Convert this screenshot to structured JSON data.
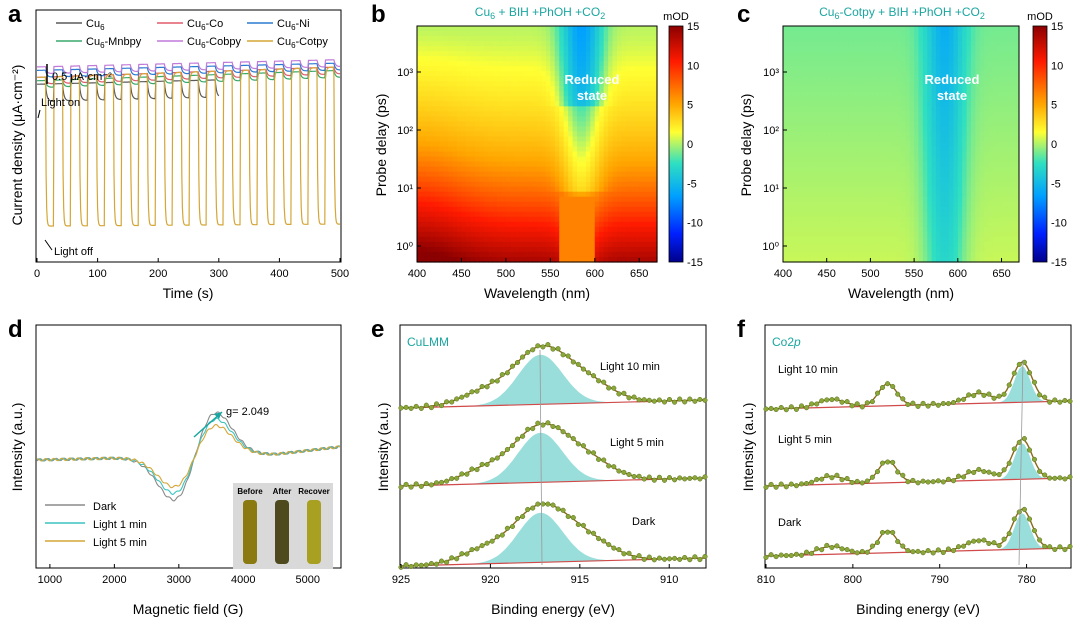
{
  "panel_labels": [
    "a",
    "b",
    "c",
    "d",
    "e",
    "f"
  ],
  "chart_data": [
    {
      "id": "a",
      "type": "line",
      "xlabel": "Time (s)",
      "ylabel": "Current density (μA·cm⁻²)",
      "xlim": [
        0,
        500
      ],
      "xticks": [
        0,
        100,
        200,
        300,
        400,
        500
      ],
      "scale_bar": "0.5 μA·cm⁻²",
      "annotations": [
        "Light on",
        "Light off"
      ],
      "series": [
        {
          "name": "Cu6",
          "color": "#5a5a5a",
          "t_end": 300,
          "on_level": 2.25,
          "off_level": 2.0
        },
        {
          "name": "Cu6-Co",
          "color": "#e05a6a",
          "t_end": 500,
          "on_level": 2.35,
          "off_level": 2.25
        },
        {
          "name": "Cu6-Ni",
          "color": "#2a7bd0",
          "t_end": 500,
          "on_level": 2.45,
          "off_level": 2.35
        },
        {
          "name": "Cu6-Mnbpy",
          "color": "#3aa86a",
          "t_end": 500,
          "on_level": 2.3,
          "off_level": 2.2
        },
        {
          "name": "Cu6-Cobpy",
          "color": "#c07ad8",
          "t_end": 500,
          "on_level": 2.5,
          "off_level": 2.4
        },
        {
          "name": "Cu6-Cotpy",
          "color": "#d4a637",
          "t_end": 500,
          "on_level": 2.35,
          "off_level": 0.2
        }
      ],
      "cycle_period_s": 28
    },
    {
      "id": "b",
      "type": "heatmap",
      "title": "Cu6 + BIH +PhOH +CO2",
      "xlabel": "Wavelength (nm)",
      "ylabel": "Probe delay (ps)",
      "xlim": [
        400,
        670
      ],
      "xticks": [
        400,
        450,
        500,
        550,
        600,
        650
      ],
      "y_log": true,
      "yticks": [
        "10⁰",
        "10¹",
        "10²",
        "10³"
      ],
      "annotation": "Reduced state",
      "colorbar": {
        "label": "mOD",
        "ticks": [
          15,
          10,
          5,
          0,
          -5,
          -10,
          -15
        ]
      }
    },
    {
      "id": "c",
      "type": "heatmap",
      "title": "Cu6-Cotpy + BIH +PhOH +CO2",
      "xlabel": "Wavelength (nm)",
      "ylabel": "Probe delay (ps)",
      "xlim": [
        400,
        670
      ],
      "xticks": [
        400,
        450,
        500,
        550,
        600,
        650
      ],
      "y_log": true,
      "yticks": [
        "10⁰",
        "10¹",
        "10²",
        "10³"
      ],
      "annotation": "Reduced state",
      "colorbar": {
        "label": "mOD",
        "ticks": [
          15,
          10,
          5,
          0,
          -5,
          -10,
          -15
        ]
      }
    },
    {
      "id": "d",
      "type": "line",
      "xlabel": "Magnetic field (G)",
      "ylabel": "Intensity (a.u.)",
      "xlim": [
        800,
        5500
      ],
      "xticks": [
        1000,
        2000,
        3000,
        4000,
        5000
      ],
      "annotation": "g= 2.049",
      "series": [
        {
          "name": "Dark",
          "color": "#8a8a8a",
          "amp": 1.0
        },
        {
          "name": "Light 1 min",
          "color": "#3cc4c0",
          "amp": 0.85
        },
        {
          "name": "Light 5 min",
          "color": "#d4a637",
          "amp": 0.7
        }
      ],
      "inset_labels": [
        "Before",
        "After",
        "Recover"
      ]
    },
    {
      "id": "e",
      "type": "line",
      "title": "CuLMM",
      "xlabel": "Binding energy (eV)",
      "ylabel": "Intensity (a.u.)",
      "xlim": [
        925,
        908
      ],
      "xticks": [
        925,
        920,
        915,
        910
      ],
      "spectra": [
        "Light 10 min",
        "Light 5 min",
        "Dark"
      ],
      "peak_eV": 917.2
    },
    {
      "id": "f",
      "type": "line",
      "title": "Co2p",
      "xlabel": "Binding energy (eV)",
      "ylabel": "Intensity (a.u.)",
      "xlim": [
        810,
        775
      ],
      "xticks": [
        810,
        800,
        790,
        780
      ],
      "spectra": [
        "Light 10 min",
        "Light 5 min",
        "Dark"
      ],
      "peak_eV": [
        780.5,
        796.0
      ]
    }
  ],
  "ui": {
    "a_legend": [
      {
        "base": "Cu",
        "sub": "6",
        "rest": ""
      },
      {
        "base": "Cu",
        "sub": "6",
        "rest": "-Co"
      },
      {
        "base": "Cu",
        "sub": "6",
        "rest": "-Ni"
      },
      {
        "base": "Cu",
        "sub": "6",
        "rest": "-Mnbpy"
      },
      {
        "base": "Cu",
        "sub": "6",
        "rest": "-Cobpy"
      },
      {
        "base": "Cu",
        "sub": "6",
        "rest": "-Cotpy"
      }
    ],
    "b_title_parts": [
      "Cu",
      "6",
      " + BIH +PhOH +CO",
      "2"
    ],
    "c_title_parts": [
      "Cu",
      "6",
      "-Cotpy + BIH +PhOH +CO",
      "2"
    ],
    "reduced_line1": "Reduced",
    "reduced_line2": "state",
    "co2p_base": "Co2",
    "co2p_ital": "p"
  }
}
